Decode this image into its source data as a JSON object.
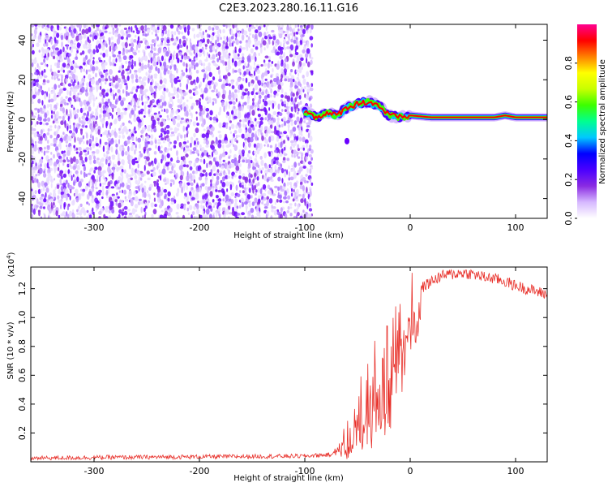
{
  "title": "C2E3.2023.280.16.11.G16",
  "chart_data": [
    {
      "type": "heatmap",
      "xlabel": "Height of straight line (km)",
      "ylabel": "Frequency (Hz)",
      "xlim": [
        -360,
        130
      ],
      "ylim": [
        -50,
        48
      ],
      "xticks": [
        -300,
        -200,
        -100,
        0,
        100
      ],
      "yticks": [
        -40,
        -20,
        0,
        20,
        40
      ],
      "grid": false,
      "noise_region": [
        -360,
        -95
      ],
      "signal_track": {
        "x": [
          -100,
          -90,
          -80,
          -70,
          -60,
          -50,
          -40,
          -30,
          -20,
          -10,
          0,
          20,
          40,
          60,
          80,
          90,
          100,
          120,
          130
        ],
        "y": [
          4,
          1,
          3,
          2,
          6,
          8,
          9,
          7,
          2,
          1,
          2,
          1,
          1,
          1,
          1,
          2,
          1,
          1,
          1
        ]
      },
      "colorbar": {
        "label": "Normalized spectral amplitude",
        "range": [
          0.0,
          1.0
        ],
        "ticks": [
          "0.0",
          "0.2",
          "0.4",
          "0.6",
          "0.8"
        ],
        "colors": [
          "#ffffff",
          "#d6b8ff",
          "#8a2be2",
          "#4b00ff",
          "#0000ff",
          "#00c8ff",
          "#00ff90",
          "#3cff00",
          "#c8ff00",
          "#ffff00",
          "#ff8000",
          "#ff0000",
          "#ff0090"
        ]
      }
    },
    {
      "type": "line",
      "xlabel": "Height of straight line (km)",
      "ylabel": "SNR (10 * v/v)",
      "y_multiplier": "(x10",
      "y_multiplier_exp": "4",
      "y_multiplier_close": ")",
      "xlim": [
        -360,
        130
      ],
      "ylim": [
        0.0,
        1.35
      ],
      "xticks": [
        -300,
        -200,
        -100,
        0,
        100
      ],
      "yticks": [
        "0.2",
        "0.4",
        "0.6",
        "0.8",
        "1.0",
        "1.2"
      ],
      "grid": false,
      "series": [
        {
          "color": "#e8302a",
          "x": [
            -360,
            -300,
            -200,
            -100,
            -75,
            -60,
            -50,
            -40,
            -30,
            -20,
            -10,
            0,
            10,
            20,
            30,
            40,
            50,
            60,
            70,
            80,
            90,
            100,
            110,
            120,
            130
          ],
          "y": [
            0.025,
            0.03,
            0.035,
            0.04,
            0.05,
            0.15,
            0.3,
            0.45,
            0.55,
            0.62,
            0.85,
            1.05,
            1.2,
            1.25,
            1.29,
            1.3,
            1.31,
            1.3,
            1.28,
            1.27,
            1.25,
            1.22,
            1.2,
            1.18,
            1.16
          ]
        }
      ]
    }
  ]
}
